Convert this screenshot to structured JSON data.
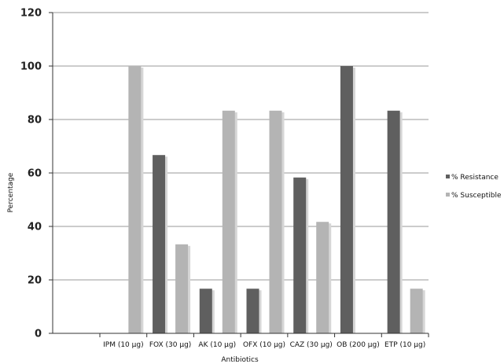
{
  "chart_data": {
    "type": "bar",
    "categories": [
      "IPM (10 µg)",
      "FOX (30 µg)",
      "AK (10 µg)",
      "OFX (10 µg)",
      "CAZ (30 µg)",
      "OB (200 µg)",
      "ETP (10 µg)"
    ],
    "series": [
      {
        "name": "% Resistance",
        "color": "#5f5f5f",
        "values": [
          0,
          66.7,
          16.7,
          16.7,
          58.3,
          100,
          83.3
        ]
      },
      {
        "name": "% Susceptible",
        "color": "#b4b4b4",
        "values": [
          100,
          33.3,
          83.3,
          83.3,
          41.7,
          0,
          16.7
        ]
      }
    ],
    "xlabel": "Antibiotics",
    "ylabel": "Percentage",
    "ylim": [
      0,
      120
    ],
    "yticks": [
      0,
      20,
      40,
      60,
      80,
      100,
      120
    ],
    "grid": true,
    "legend_position": "right"
  }
}
